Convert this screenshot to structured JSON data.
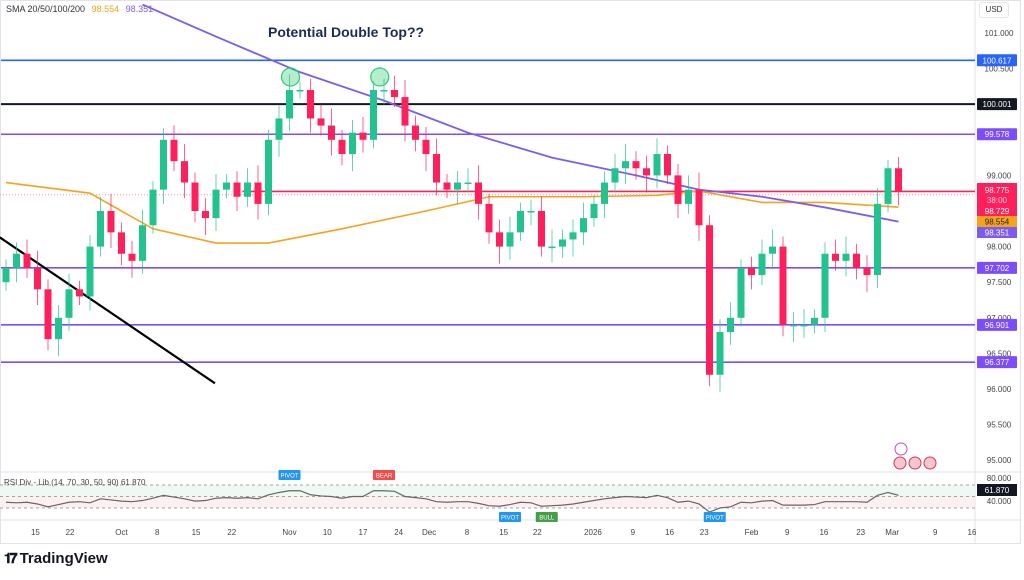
{
  "legend": {
    "label": "SMA 20/50/100/200",
    "val1": "98.554",
    "val2": "98.351"
  },
  "currency": "USD",
  "annotation": "Potential Double Top??",
  "footer": {
    "brand": "TradingView",
    "logo": "17"
  },
  "colors": {
    "up": "#22c38e",
    "down": "#ff1f5a",
    "sma_orange": "#f7a21b",
    "sma_purple": "#7c5cf0",
    "level_purple": "#7b4dff",
    "level_blue": "#2962ff",
    "level_black": "#131722",
    "level_red": "#ff2255",
    "rsi": "#666666",
    "circle": "#2ecc71"
  },
  "chart_data": {
    "type": "candlestick",
    "title": "Potential Double Top??",
    "ylim": [
      94.9,
      101.4
    ],
    "price_ticks": [
      "101.000",
      "100.500",
      "99.000",
      "98.000",
      "97.500",
      "97.000",
      "96.500",
      "96.000",
      "95.500",
      "95.000"
    ],
    "price_tick_values": [
      101.0,
      100.5,
      99.0,
      98.0,
      97.5,
      97.0,
      96.5,
      96.0,
      95.5,
      95.0
    ],
    "levels": [
      {
        "value": 100.617,
        "label": "100.617",
        "color": "#2962ff",
        "from": 0
      },
      {
        "value": 100.001,
        "label": "100.001",
        "color": "#131722",
        "from": 0
      },
      {
        "value": 99.578,
        "label": "99.578",
        "color": "#7b4dff",
        "from": 0
      },
      {
        "value": 98.775,
        "label": "98.775",
        "color": "#ff2255",
        "from": 23
      },
      {
        "value": 97.702,
        "label": "97.702",
        "color": "#7b4dff",
        "from": 0
      },
      {
        "value": 96.901,
        "label": "96.901",
        "color": "#7b4dff",
        "from": 0
      },
      {
        "value": 96.377,
        "label": "96.377",
        "color": "#7b4dff",
        "from": 0
      }
    ],
    "price_box": {
      "last": "98.775",
      "countdown": "38:00",
      "prev": "98.729",
      "sma_orange": "98.554",
      "sma_purple": "98.351"
    },
    "closes": [
      97.7,
      97.9,
      97.7,
      97.4,
      96.7,
      97.0,
      97.4,
      97.3,
      98.0,
      98.5,
      98.2,
      97.9,
      97.8,
      98.3,
      98.8,
      99.5,
      99.2,
      98.9,
      98.5,
      98.4,
      98.8,
      98.9,
      98.7,
      98.9,
      98.6,
      99.5,
      99.8,
      100.2,
      100.2,
      99.8,
      99.7,
      99.5,
      99.3,
      99.6,
      99.5,
      100.2,
      100.2,
      100.1,
      99.7,
      99.5,
      99.3,
      98.9,
      98.8,
      98.9,
      98.9,
      98.6,
      98.2,
      98.0,
      98.2,
      98.5,
      98.5,
      98.0,
      98.0,
      98.1,
      98.2,
      98.4,
      98.6,
      98.9,
      99.1,
      99.2,
      99.1,
      99.0,
      99.3,
      99.0,
      98.6,
      98.8,
      98.3,
      96.2,
      96.8,
      97.0,
      97.7,
      97.6,
      97.9,
      98.0,
      96.9,
      96.9,
      96.9,
      97.0,
      97.9,
      97.8,
      97.9,
      97.7,
      97.6,
      98.6,
      99.1,
      98.78
    ],
    "first_open": 97.5,
    "sma_orange": [
      [
        0,
        98.9
      ],
      [
        8,
        98.75
      ],
      [
        14,
        98.25
      ],
      [
        20,
        98.05
      ],
      [
        25,
        98.05
      ],
      [
        32,
        98.25
      ],
      [
        40,
        98.5
      ],
      [
        46,
        98.7
      ],
      [
        55,
        98.7
      ],
      [
        62,
        98.72
      ],
      [
        66,
        98.78
      ],
      [
        72,
        98.62
      ],
      [
        78,
        98.62
      ],
      [
        85,
        98.554
      ]
    ],
    "sma_purple": [
      [
        13,
        101.4
      ],
      [
        20,
        100.95
      ],
      [
        28,
        100.45
      ],
      [
        36,
        100.05
      ],
      [
        44,
        99.6
      ],
      [
        52,
        99.25
      ],
      [
        60,
        99.0
      ],
      [
        66,
        98.8
      ],
      [
        72,
        98.7
      ],
      [
        78,
        98.55
      ],
      [
        85,
        98.351
      ]
    ],
    "trendline": [
      [
        -0.6,
        98.13
      ],
      [
        19.9,
        96.08
      ]
    ],
    "double_top_marks": [
      27,
      35.5
    ],
    "x_ticks": [
      {
        "i": 2.8,
        "label": "15"
      },
      {
        "i": 6.1,
        "label": "22"
      },
      {
        "i": 11,
        "label": "Oct"
      },
      {
        "i": 14.4,
        "label": "8"
      },
      {
        "i": 18.1,
        "label": "15"
      },
      {
        "i": 21.5,
        "label": "22"
      },
      {
        "i": 27,
        "label": "Nov"
      },
      {
        "i": 30.6,
        "label": "10"
      },
      {
        "i": 34,
        "label": "17"
      },
      {
        "i": 37.4,
        "label": "24"
      },
      {
        "i": 40.3,
        "label": "Dec"
      },
      {
        "i": 43.9,
        "label": "8"
      },
      {
        "i": 47.4,
        "label": "15"
      },
      {
        "i": 50.6,
        "label": "22"
      },
      {
        "i": 55.9,
        "label": "2026"
      },
      {
        "i": 59.7,
        "label": "9"
      },
      {
        "i": 63.2,
        "label": "16"
      },
      {
        "i": 66.5,
        "label": "23"
      },
      {
        "i": 71,
        "label": "Feb"
      },
      {
        "i": 74.4,
        "label": "9"
      },
      {
        "i": 77.9,
        "label": "16"
      },
      {
        "i": 81.4,
        "label": "23"
      },
      {
        "i": 84.4,
        "label": "Mar"
      },
      {
        "i": 88.5,
        "label": "9"
      },
      {
        "i": 92,
        "label": "16"
      }
    ],
    "rsi": {
      "legend": "RSI Div - Lib (14, 70, 30, 50, 90)  61.870",
      "value_label": "61.870",
      "ticks": [
        "80.000",
        "40.000"
      ],
      "ylim": [
        30,
        90
      ],
      "values": [
        50,
        49,
        50,
        47,
        42,
        46,
        50,
        51,
        49,
        56,
        54,
        52,
        51,
        53,
        57,
        62,
        59,
        56,
        52,
        53,
        57,
        58,
        57,
        58,
        56,
        63,
        67,
        70,
        70,
        63,
        61,
        60,
        57,
        60,
        60,
        70,
        70,
        69,
        60,
        58,
        56,
        51,
        50,
        51,
        51,
        48,
        44,
        43,
        46,
        50,
        49,
        43,
        44,
        45,
        47,
        50,
        53,
        56,
        58,
        60,
        59,
        58,
        62,
        58,
        50,
        52,
        47,
        33,
        40,
        42,
        50,
        49,
        52,
        53,
        45,
        45,
        45,
        46,
        51,
        51,
        51,
        51,
        50,
        62,
        67,
        62
      ],
      "signals": [
        {
          "i": 27,
          "label": "PIVOT",
          "pos": "top",
          "color": "#2196f3"
        },
        {
          "i": 36,
          "label": "BEAR",
          "pos": "top",
          "color": "#f44a4a"
        },
        {
          "i": 48,
          "label": "PIVOT",
          "pos": "bottom",
          "color": "#2196f3"
        },
        {
          "i": 51.5,
          "label": "BULL",
          "pos": "bottom",
          "color": "#43a047"
        },
        {
          "i": 67.5,
          "label": "PIVOT",
          "pos": "bottom",
          "color": "#2196f3"
        }
      ]
    }
  }
}
